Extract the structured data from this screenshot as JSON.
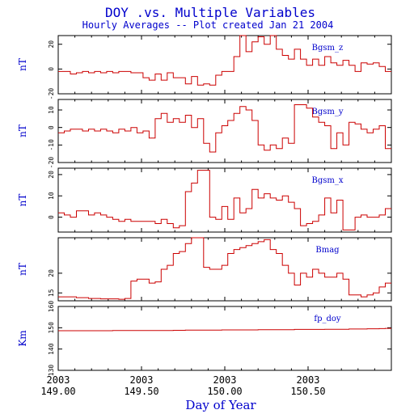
{
  "chart_data": {
    "type": "line",
    "title": "DOY .vs. Multiple Variables",
    "subtitle": "Hourly Averages -- Plot created Jan 21 2004",
    "xlabel": "Day of Year",
    "xlim": [
      149.0,
      151.0
    ],
    "x_ticks": [
      {
        "value": 149.0,
        "year": "2003",
        "label": "149.00"
      },
      {
        "value": 149.5,
        "year": "2003",
        "label": "149.50"
      },
      {
        "value": 150.0,
        "year": "2003",
        "label": "150.00"
      },
      {
        "value": 150.5,
        "year": "2003",
        "label": "150.50"
      }
    ],
    "color": "#cc0000",
    "panels": [
      {
        "name": "Bgsm_z",
        "ylabel": "nT",
        "ylim": [
          -20,
          27
        ],
        "yticks": [
          {
            "value": 20,
            "label": "20"
          },
          {
            "value": 0,
            "label": "0"
          },
          {
            "value": -20,
            "label": "-20"
          }
        ],
        "values": [
          -2,
          -2,
          -4,
          -3,
          -2,
          -3,
          -2,
          -3,
          -2,
          -3,
          -2,
          -2,
          -3,
          -3,
          -7,
          -9,
          -4,
          -9,
          -3,
          -7,
          -7,
          -12,
          -6,
          -13,
          -12,
          -13,
          -5,
          -2,
          -2,
          10,
          27,
          14,
          22,
          26,
          20,
          27,
          16,
          11,
          8,
          16,
          8,
          3,
          8,
          3,
          10,
          5,
          3,
          7,
          3,
          -2,
          5,
          4,
          5,
          2,
          -2
        ]
      },
      {
        "name": "Bgsm_y",
        "ylabel": "nT",
        "ylim": [
          -20,
          16
        ],
        "yticks": [
          {
            "value": 10,
            "label": "10"
          },
          {
            "value": 0,
            "label": "0"
          },
          {
            "value": -10,
            "label": "-10"
          },
          {
            "value": -20,
            "label": "-20"
          }
        ],
        "values": [
          -3,
          -2,
          -1,
          -1,
          -2,
          -1,
          -2,
          -1,
          -2,
          -3,
          -1,
          -2,
          0,
          -3,
          -2,
          -6,
          5,
          8,
          3,
          5,
          3,
          7,
          0,
          5,
          -9,
          -14,
          -3,
          1,
          4,
          8,
          12,
          10,
          4,
          -10,
          -13,
          -10,
          -12,
          -6,
          -9,
          13,
          13,
          11,
          6,
          3,
          1,
          -12,
          -3,
          -10,
          3,
          2,
          -1,
          -3,
          -1,
          1,
          -12
        ]
      },
      {
        "name": "Bgsm_x",
        "ylabel": "nT",
        "ylim": [
          -7,
          23
        ],
        "yticks": [
          {
            "value": 20,
            "label": "20"
          },
          {
            "value": 10,
            "label": "10"
          },
          {
            "value": 0,
            "label": "0"
          }
        ],
        "values": [
          2,
          1,
          0,
          3,
          3,
          1,
          2,
          1,
          0,
          -1,
          -2,
          -1,
          -2,
          -2,
          -2,
          -2,
          -3,
          -1,
          -3,
          -5,
          -4,
          12,
          16,
          22,
          22,
          0,
          -1,
          5,
          -1,
          9,
          2,
          4,
          13,
          9,
          11,
          9,
          8,
          10,
          7,
          4,
          -4,
          -3,
          -2,
          1,
          9,
          2,
          8,
          -6,
          -6,
          0,
          1,
          0,
          0,
          1,
          4
        ]
      },
      {
        "name": "Bmag",
        "ylabel": "nT",
        "ylim": [
          13,
          29
        ],
        "yticks": [
          {
            "value": 20,
            "label": "20"
          },
          {
            "value": 15,
            "label": "15"
          }
        ],
        "values": [
          14,
          14,
          14,
          13.8,
          13.8,
          13.6,
          13.6,
          13.5,
          13.5,
          13.5,
          13.4,
          13.6,
          18,
          18.5,
          18.5,
          17.5,
          17.8,
          21,
          22,
          25,
          25.5,
          27.5,
          29,
          29,
          21.5,
          21,
          21,
          22,
          25,
          26,
          26.5,
          27,
          27.5,
          28,
          28.5,
          26,
          25,
          22,
          20,
          17,
          20,
          19,
          21,
          20,
          19,
          19,
          20,
          18.5,
          14.5,
          14.5,
          14,
          14.5,
          15,
          16.5,
          17.5
        ]
      },
      {
        "name": "fp_doy",
        "ylabel": "Km",
        "ylim": [
          130,
          160
        ],
        "yticks": [
          {
            "value": 160,
            "label": "160"
          },
          {
            "value": 150,
            "label": "150"
          },
          {
            "value": 140,
            "label": "140"
          },
          {
            "value": 130,
            "label": "130"
          }
        ],
        "values": [
          148.6,
          148.6,
          148.6,
          148.6,
          148.6,
          148.6,
          148.6,
          148.6,
          148.6,
          148.7,
          148.7,
          148.7,
          148.7,
          148.7,
          148.7,
          148.7,
          148.7,
          148.7,
          148.7,
          148.8,
          148.8,
          148.9,
          148.9,
          148.9,
          148.9,
          148.9,
          148.9,
          149.0,
          149.0,
          149.0,
          149.0,
          149.0,
          149.0,
          149.1,
          149.1,
          149.1,
          149.1,
          149.1,
          149.1,
          149.2,
          149.2,
          149.2,
          149.2,
          149.2,
          149.3,
          149.3,
          149.3,
          149.3,
          149.4,
          149.4,
          149.4,
          149.5,
          149.5,
          149.6,
          149.7
        ]
      }
    ]
  }
}
